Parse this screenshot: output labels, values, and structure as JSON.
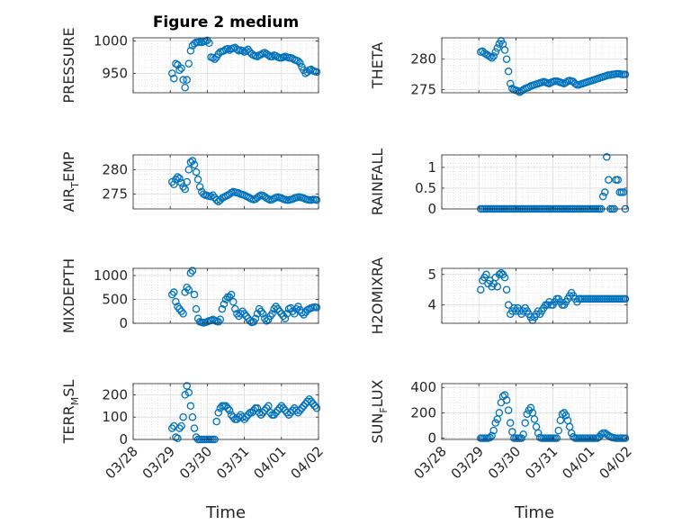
{
  "title": "Figure 2 medium",
  "xlabel": "Time",
  "x_tick_labels": [
    "03/28",
    "03/29",
    "03/30",
    "03/31",
    "04/01",
    "04/02"
  ],
  "marker_color": "#0072BD",
  "chart_data": [
    {
      "type": "scatter",
      "marker": "circle-open",
      "ylabel": "PRESSURE",
      "ylim": [
        920,
        1005
      ],
      "yticks": [
        950,
        1000
      ],
      "grid": true,
      "x_range_days": [
        0,
        5
      ],
      "x": [
        1.05,
        1.1,
        1.15,
        1.2,
        1.25,
        1.3,
        1.35,
        1.4,
        1.45,
        1.5,
        1.55,
        1.6,
        1.65,
        1.7,
        1.75,
        1.8,
        1.85,
        1.9,
        1.95,
        2.0,
        2.05,
        2.1,
        2.15,
        2.2,
        2.25,
        2.3,
        2.35,
        2.4,
        2.45,
        2.5,
        2.55,
        2.6,
        2.65,
        2.7,
        2.75,
        2.8,
        2.85,
        2.9,
        2.95,
        3.0,
        3.05,
        3.1,
        3.15,
        3.2,
        3.25,
        3.3,
        3.35,
        3.4,
        3.45,
        3.5,
        3.55,
        3.6,
        3.65,
        3.7,
        3.75,
        3.8,
        3.85,
        3.9,
        3.95,
        4.0,
        4.05,
        4.1,
        4.15,
        4.2,
        4.25,
        4.3,
        4.35,
        4.4,
        4.45,
        4.5,
        4.55,
        4.6,
        4.65,
        4.7,
        4.75,
        4.8,
        4.85,
        4.9,
        4.95
      ],
      "y": [
        950,
        942,
        965,
        963,
        955,
        958,
        940,
        928,
        940,
        965,
        985,
        993,
        996,
        998,
        998,
        999,
        998,
        999,
        1000,
        1001,
        997,
        975,
        974,
        972,
        975,
        980,
        983,
        984,
        985,
        987,
        988,
        986,
        988,
        989,
        990,
        987,
        985,
        986,
        985,
        983,
        985,
        987,
        983,
        980,
        978,
        977,
        976,
        978,
        979,
        981,
        982,
        980,
        978,
        976,
        976,
        978,
        977,
        975,
        974,
        974,
        975,
        976,
        975,
        974,
        974,
        973,
        971,
        970,
        969,
        966,
        960,
        955,
        950,
        952,
        955,
        956,
        954,
        953,
        952
      ]
    },
    {
      "type": "scatter",
      "marker": "circle-open",
      "ylabel": "THETA",
      "ylim": [
        274.5,
        283.5
      ],
      "yticks": [
        275,
        280
      ],
      "grid": true,
      "x_range_days": [
        0,
        5
      ],
      "x": [
        1.05,
        1.1,
        1.15,
        1.2,
        1.25,
        1.3,
        1.35,
        1.4,
        1.45,
        1.5,
        1.55,
        1.6,
        1.65,
        1.7,
        1.75,
        1.8,
        1.85,
        1.9,
        1.95,
        2.0,
        2.05,
        2.1,
        2.15,
        2.2,
        2.25,
        2.3,
        2.35,
        2.4,
        2.45,
        2.5,
        2.55,
        2.6,
        2.65,
        2.7,
        2.75,
        2.8,
        2.85,
        2.9,
        2.95,
        3.0,
        3.05,
        3.1,
        3.15,
        3.2,
        3.25,
        3.3,
        3.35,
        3.4,
        3.45,
        3.5,
        3.55,
        3.6,
        3.65,
        3.7,
        3.75,
        3.8,
        3.85,
        3.9,
        3.95,
        4.0,
        4.05,
        4.1,
        4.15,
        4.2,
        4.25,
        4.3,
        4.35,
        4.4,
        4.45,
        4.5,
        4.55,
        4.6,
        4.65,
        4.7,
        4.75,
        4.8,
        4.85,
        4.9,
        4.95
      ],
      "y": [
        281.2,
        281.3,
        281.0,
        280.8,
        280.6,
        280.4,
        280.2,
        280.5,
        281.2,
        281.8,
        282.5,
        283.0,
        282.5,
        281.5,
        280.0,
        278.0,
        276.0,
        275.2,
        275.0,
        274.9,
        274.8,
        274.6,
        274.8,
        275.0,
        275.2,
        275.3,
        275.4,
        275.6,
        275.7,
        275.8,
        275.9,
        276.0,
        276.1,
        276.2,
        276.3,
        276.2,
        276.1,
        276.0,
        276.2,
        276.3,
        276.4,
        276.4,
        276.3,
        276.2,
        276.1,
        276.0,
        276.2,
        276.4,
        276.5,
        276.4,
        276.3,
        276.0,
        275.8,
        275.8,
        275.9,
        276.0,
        276.1,
        276.2,
        276.3,
        276.4,
        276.5,
        276.6,
        276.7,
        276.8,
        276.9,
        277.0,
        277.1,
        277.2,
        277.3,
        277.4,
        277.4,
        277.5,
        277.5,
        277.6,
        277.6,
        277.6,
        277.5,
        277.5,
        277.5
      ]
    },
    {
      "type": "scatter",
      "marker": "circle-open",
      "ylabel": "AIR_TEMP",
      "ylim": [
        272,
        283
      ],
      "yticks": [
        275,
        280
      ],
      "grid": true,
      "x_range_days": [
        0,
        5
      ],
      "x": [
        1.05,
        1.1,
        1.15,
        1.2,
        1.25,
        1.3,
        1.35,
        1.4,
        1.45,
        1.5,
        1.55,
        1.6,
        1.65,
        1.7,
        1.75,
        1.8,
        1.85,
        1.9,
        1.95,
        2.0,
        2.05,
        2.1,
        2.15,
        2.2,
        2.25,
        2.3,
        2.35,
        2.4,
        2.45,
        2.5,
        2.55,
        2.6,
        2.65,
        2.7,
        2.75,
        2.8,
        2.85,
        2.9,
        2.95,
        3.0,
        3.05,
        3.1,
        3.15,
        3.2,
        3.25,
        3.3,
        3.35,
        3.4,
        3.45,
        3.5,
        3.55,
        3.6,
        3.65,
        3.7,
        3.75,
        3.8,
        3.85,
        3.9,
        3.95,
        4.0,
        4.05,
        4.1,
        4.15,
        4.2,
        4.25,
        4.3,
        4.35,
        4.4,
        4.45,
        4.5,
        4.55,
        4.6,
        4.65,
        4.7,
        4.75,
        4.8,
        4.85,
        4.9,
        4.95
      ],
      "y": [
        277.5,
        277.0,
        278.0,
        278.5,
        278.2,
        277.3,
        276.5,
        276.0,
        277.5,
        280.0,
        281.5,
        281.8,
        281.0,
        279.5,
        278.0,
        276.5,
        275.5,
        275.0,
        274.8,
        274.7,
        274.6,
        274.5,
        274.8,
        274.3,
        273.8,
        273.5,
        273.8,
        274.2,
        274.4,
        274.6,
        274.8,
        275.0,
        275.3,
        275.5,
        275.4,
        275.3,
        275.2,
        275.0,
        274.9,
        274.8,
        274.6,
        274.4,
        274.2,
        274.0,
        273.9,
        274.0,
        274.3,
        274.6,
        274.8,
        274.7,
        274.5,
        274.2,
        274.0,
        273.8,
        273.9,
        274.1,
        274.3,
        274.4,
        274.3,
        274.2,
        274.0,
        273.9,
        273.8,
        273.8,
        273.9,
        274.0,
        274.2,
        274.3,
        274.4,
        274.4,
        274.3,
        274.2,
        274.0,
        273.9,
        273.8,
        273.8,
        273.9,
        273.9,
        273.8
      ]
    },
    {
      "type": "scatter",
      "marker": "circle-open",
      "ylabel": "RAINFALL",
      "ylim": [
        0,
        1.3
      ],
      "yticks": [
        0,
        0.5,
        1
      ],
      "grid": true,
      "x_range_days": [
        0,
        5
      ],
      "x": [
        1.05,
        1.1,
        1.15,
        1.2,
        1.25,
        1.3,
        1.35,
        1.4,
        1.45,
        1.5,
        1.55,
        1.6,
        1.65,
        1.7,
        1.75,
        1.8,
        1.85,
        1.9,
        1.95,
        2.0,
        2.05,
        2.1,
        2.15,
        2.2,
        2.25,
        2.3,
        2.35,
        2.4,
        2.45,
        2.5,
        2.55,
        2.6,
        2.65,
        2.7,
        2.75,
        2.8,
        2.85,
        2.9,
        2.95,
        3.0,
        3.05,
        3.1,
        3.15,
        3.2,
        3.25,
        3.3,
        3.35,
        3.4,
        3.45,
        3.5,
        3.55,
        3.6,
        3.65,
        3.7,
        3.75,
        3.8,
        3.85,
        3.9,
        3.95,
        4.0,
        4.05,
        4.1,
        4.15,
        4.2,
        4.25,
        4.3,
        4.35,
        4.4,
        4.45,
        4.5,
        4.55,
        4.6,
        4.65,
        4.7,
        4.75,
        4.8,
        4.85,
        4.9,
        4.95
      ],
      "y": [
        0,
        0,
        0,
        0,
        0,
        0,
        0,
        0,
        0,
        0,
        0,
        0,
        0,
        0,
        0,
        0,
        0,
        0,
        0,
        0,
        0,
        0,
        0,
        0,
        0,
        0,
        0,
        0,
        0,
        0,
        0,
        0,
        0,
        0,
        0,
        0,
        0,
        0,
        0,
        0,
        0,
        0,
        0,
        0,
        0,
        0,
        0,
        0,
        0,
        0,
        0,
        0,
        0,
        0,
        0,
        0,
        0,
        0,
        0,
        0,
        0,
        0,
        0,
        0,
        0,
        0,
        0.3,
        0.4,
        1.25,
        0.7,
        0,
        0,
        0,
        0.7,
        0.7,
        0.4,
        0.4,
        0.4,
        0
      ]
    },
    {
      "type": "scatter",
      "marker": "circle-open",
      "ylabel": "MIXDEPTH",
      "ylim": [
        0,
        1150
      ],
      "yticks": [
        0,
        500,
        1000
      ],
      "grid": true,
      "x_range_days": [
        0,
        5
      ],
      "x": [
        1.05,
        1.1,
        1.15,
        1.2,
        1.25,
        1.3,
        1.35,
        1.4,
        1.45,
        1.5,
        1.55,
        1.6,
        1.65,
        1.7,
        1.75,
        1.8,
        1.85,
        1.9,
        1.95,
        2.0,
        2.05,
        2.1,
        2.15,
        2.2,
        2.25,
        2.3,
        2.35,
        2.4,
        2.45,
        2.5,
        2.55,
        2.6,
        2.65,
        2.7,
        2.75,
        2.8,
        2.85,
        2.9,
        2.95,
        3.0,
        3.05,
        3.1,
        3.15,
        3.2,
        3.25,
        3.3,
        3.35,
        3.4,
        3.45,
        3.5,
        3.55,
        3.6,
        3.65,
        3.7,
        3.75,
        3.8,
        3.85,
        3.9,
        3.95,
        4.0,
        4.05,
        4.1,
        4.15,
        4.2,
        4.25,
        4.3,
        4.35,
        4.4,
        4.45,
        4.5,
        4.55,
        4.6,
        4.65,
        4.7,
        4.75,
        4.8,
        4.85,
        4.9,
        4.95
      ],
      "y": [
        600,
        650,
        450,
        350,
        300,
        250,
        200,
        650,
        750,
        700,
        1050,
        1100,
        600,
        300,
        100,
        30,
        20,
        10,
        20,
        30,
        50,
        60,
        80,
        60,
        40,
        30,
        80,
        300,
        400,
        500,
        550,
        550,
        600,
        450,
        300,
        200,
        150,
        200,
        250,
        200,
        150,
        100,
        50,
        20,
        30,
        100,
        200,
        300,
        250,
        200,
        100,
        50,
        80,
        150,
        200,
        300,
        350,
        300,
        250,
        200,
        150,
        100,
        200,
        300,
        320,
        250,
        200,
        300,
        350,
        280,
        220,
        180,
        230,
        280,
        300,
        320,
        330,
        340,
        330
      ]
    },
    {
      "type": "scatter",
      "marker": "circle-open",
      "ylabel": "H2OMIXRA",
      "ylim": [
        3.4,
        5.2
      ],
      "yticks": [
        4,
        5
      ],
      "grid": true,
      "x_range_days": [
        0,
        5
      ],
      "x": [
        1.05,
        1.1,
        1.15,
        1.2,
        1.25,
        1.3,
        1.35,
        1.4,
        1.45,
        1.5,
        1.55,
        1.6,
        1.65,
        1.7,
        1.75,
        1.8,
        1.85,
        1.9,
        1.95,
        2.0,
        2.05,
        2.1,
        2.15,
        2.2,
        2.25,
        2.3,
        2.35,
        2.4,
        2.45,
        2.5,
        2.55,
        2.6,
        2.65,
        2.7,
        2.75,
        2.8,
        2.85,
        2.9,
        2.95,
        3.0,
        3.05,
        3.1,
        3.15,
        3.2,
        3.25,
        3.3,
        3.35,
        3.4,
        3.45,
        3.5,
        3.55,
        3.6,
        3.65,
        3.7,
        3.75,
        3.8,
        3.85,
        3.9,
        3.95,
        4.0,
        4.05,
        4.1,
        4.15,
        4.2,
        4.25,
        4.3,
        4.35,
        4.4,
        4.45,
        4.5,
        4.55,
        4.6,
        4.65,
        4.7,
        4.75,
        4.8,
        4.85,
        4.9,
        4.95
      ],
      "y": [
        4.5,
        4.8,
        4.9,
        5.0,
        4.7,
        4.8,
        4.6,
        4.7,
        4.9,
        4.6,
        5.0,
        5.05,
        5.0,
        4.9,
        4.5,
        4.0,
        3.7,
        3.8,
        3.9,
        3.8,
        3.9,
        3.8,
        3.7,
        3.8,
        3.9,
        3.8,
        3.7,
        3.6,
        3.5,
        3.6,
        3.7,
        3.8,
        3.7,
        3.8,
        3.9,
        4.0,
        4.0,
        4.1,
        4.0,
        4.0,
        4.1,
        4.2,
        4.2,
        4.1,
        4.0,
        4.0,
        4.1,
        4.2,
        4.3,
        4.4,
        4.3,
        4.2,
        4.1,
        4.2,
        4.2,
        4.2,
        4.2,
        4.2,
        4.2,
        4.2,
        4.2,
        4.2,
        4.2,
        4.2,
        4.2,
        4.2,
        4.2,
        4.2,
        4.2,
        4.2,
        4.2,
        4.2,
        4.2,
        4.2,
        4.2,
        4.2,
        4.2,
        4.2,
        4.2
      ]
    },
    {
      "type": "scatter",
      "marker": "circle-open",
      "ylabel": "TERR_MSL",
      "ylim": [
        0,
        250
      ],
      "yticks": [
        0,
        100,
        200
      ],
      "grid": true,
      "x_range_days": [
        0,
        5
      ],
      "x": [
        1.05,
        1.1,
        1.15,
        1.2,
        1.25,
        1.3,
        1.35,
        1.4,
        1.45,
        1.5,
        1.55,
        1.6,
        1.65,
        1.7,
        1.75,
        1.8,
        1.85,
        1.9,
        1.95,
        2.0,
        2.05,
        2.1,
        2.15,
        2.2,
        2.25,
        2.3,
        2.35,
        2.4,
        2.45,
        2.5,
        2.55,
        2.6,
        2.65,
        2.7,
        2.75,
        2.8,
        2.85,
        2.9,
        2.95,
        3.0,
        3.05,
        3.1,
        3.15,
        3.2,
        3.25,
        3.3,
        3.35,
        3.4,
        3.45,
        3.5,
        3.55,
        3.6,
        3.65,
        3.7,
        3.75,
        3.8,
        3.85,
        3.9,
        3.95,
        4.0,
        4.05,
        4.1,
        4.15,
        4.2,
        4.25,
        4.3,
        4.35,
        4.4,
        4.45,
        4.5,
        4.55,
        4.6,
        4.65,
        4.7,
        4.75,
        4.8,
        4.85,
        4.9,
        4.95
      ],
      "y": [
        50,
        60,
        10,
        5,
        50,
        60,
        100,
        200,
        240,
        210,
        150,
        100,
        50,
        10,
        0,
        0,
        0,
        0,
        0,
        0,
        0,
        0,
        0,
        0,
        80,
        120,
        140,
        150,
        150,
        150,
        140,
        130,
        110,
        100,
        90,
        90,
        100,
        110,
        100,
        90,
        100,
        110,
        120,
        120,
        130,
        140,
        140,
        120,
        110,
        120,
        130,
        140,
        150,
        120,
        110,
        110,
        120,
        130,
        140,
        150,
        140,
        130,
        120,
        110,
        120,
        130,
        140,
        130,
        120,
        130,
        140,
        150,
        160,
        170,
        180,
        170,
        160,
        150,
        140
      ]
    },
    {
      "type": "scatter",
      "marker": "circle-open",
      "ylabel": "SUN_FLUX",
      "ylim": [
        -10,
        430
      ],
      "yticks": [
        0,
        200,
        400
      ],
      "grid": true,
      "x_range_days": [
        0,
        5
      ],
      "x": [
        1.05,
        1.1,
        1.15,
        1.2,
        1.25,
        1.3,
        1.35,
        1.4,
        1.45,
        1.5,
        1.55,
        1.6,
        1.65,
        1.7,
        1.75,
        1.8,
        1.85,
        1.9,
        1.95,
        2.0,
        2.05,
        2.1,
        2.15,
        2.2,
        2.25,
        2.3,
        2.35,
        2.4,
        2.45,
        2.5,
        2.55,
        2.6,
        2.65,
        2.7,
        2.75,
        2.8,
        2.85,
        2.9,
        2.95,
        3.0,
        3.05,
        3.1,
        3.15,
        3.2,
        3.25,
        3.3,
        3.35,
        3.4,
        3.45,
        3.5,
        3.55,
        3.6,
        3.65,
        3.7,
        3.75,
        3.8,
        3.85,
        3.9,
        3.95,
        4.0,
        4.05,
        4.1,
        4.15,
        4.2,
        4.25,
        4.3,
        4.35,
        4.4,
        4.45,
        4.5,
        4.55,
        4.6,
        4.65,
        4.7,
        4.75,
        4.8,
        4.85,
        4.9,
        4.95
      ],
      "y": [
        0,
        0,
        0,
        0,
        0,
        5,
        20,
        60,
        120,
        150,
        200,
        280,
        330,
        340,
        300,
        220,
        120,
        50,
        0,
        0,
        0,
        0,
        0,
        30,
        120,
        190,
        220,
        240,
        200,
        150,
        90,
        40,
        5,
        0,
        0,
        0,
        0,
        0,
        0,
        0,
        0,
        0,
        60,
        140,
        190,
        200,
        180,
        140,
        90,
        40,
        10,
        0,
        0,
        0,
        0,
        0,
        0,
        0,
        0,
        0,
        0,
        0,
        0,
        0,
        10,
        30,
        40,
        40,
        30,
        20,
        10,
        5,
        2,
        0,
        0,
        0,
        0,
        0,
        0
      ]
    }
  ]
}
